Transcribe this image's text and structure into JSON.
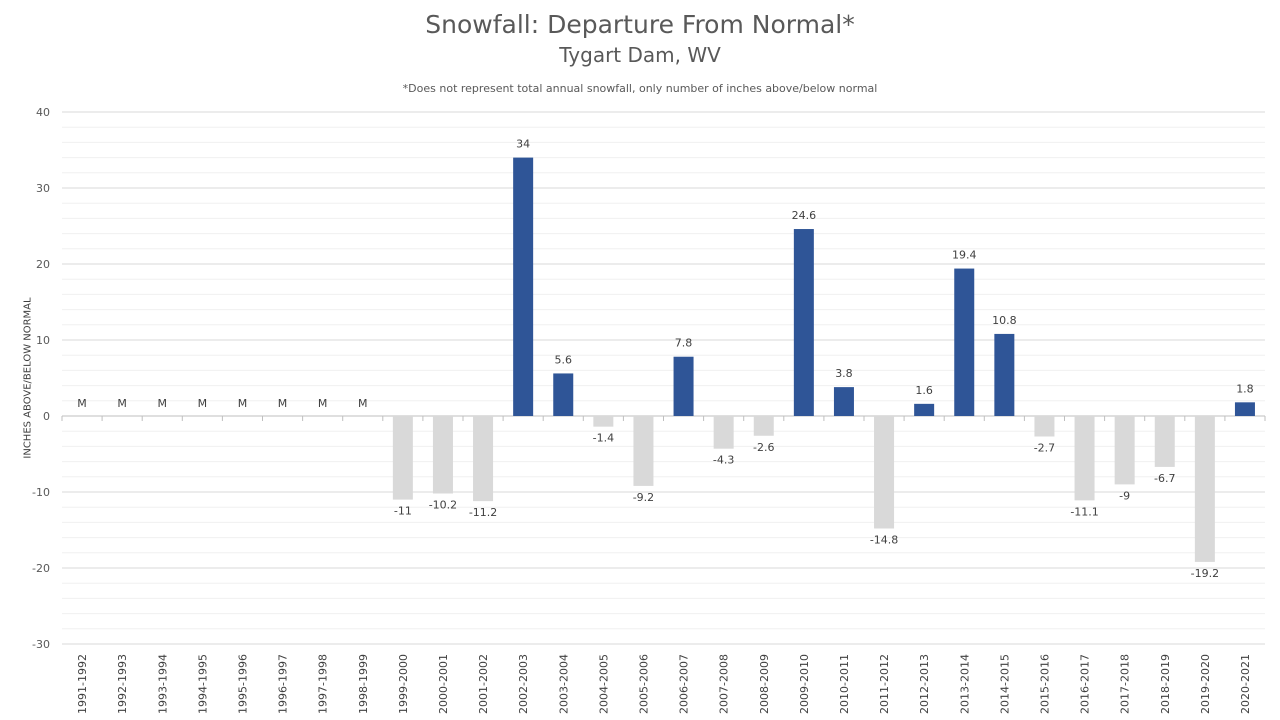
{
  "chart_data": {
    "type": "bar",
    "title": "Snowfall: Departure From Normal*",
    "subtitle": "Tygart Dam, WV",
    "note": "*Does not represent  total annual snowfall, only number of inches above/below normal",
    "ylabel": "INCHES ABOVE/BELOW NORMAL",
    "ylim": [
      -30,
      40
    ],
    "yticks": [
      40,
      30,
      20,
      10,
      0,
      -10,
      -20,
      -30
    ],
    "grid": true,
    "missing_label": "M",
    "colors": {
      "positive": "#2f5597",
      "negative": "#d9d9d9"
    },
    "categories": [
      "1991-1992",
      "1992-1993",
      "1993-1994",
      "1994-1995",
      "1995-1996",
      "1996-1997",
      "1997-1998",
      "1998-1999",
      "1999-2000",
      "2000-2001",
      "2001-2002",
      "2002-2003",
      "2003-2004",
      "2004-2005",
      "2005-2006",
      "2006-2007",
      "2007-2008",
      "2008-2009",
      "2009-2010",
      "2010-2011",
      "2011-2012",
      "2012-2013",
      "2013-2014",
      "2014-2015",
      "2015-2016",
      "2016-2017",
      "2017-2018",
      "2018-2019",
      "2019-2020",
      "2020-2021"
    ],
    "values": [
      null,
      null,
      null,
      null,
      null,
      null,
      null,
      null,
      -11,
      -10.2,
      -11.2,
      34,
      5.6,
      -1.4,
      -9.2,
      7.8,
      -4.3,
      -2.6,
      24.6,
      3.8,
      -14.8,
      1.6,
      19.4,
      10.8,
      -2.7,
      -11.1,
      -9,
      -6.7,
      -19.2,
      1.8
    ]
  }
}
